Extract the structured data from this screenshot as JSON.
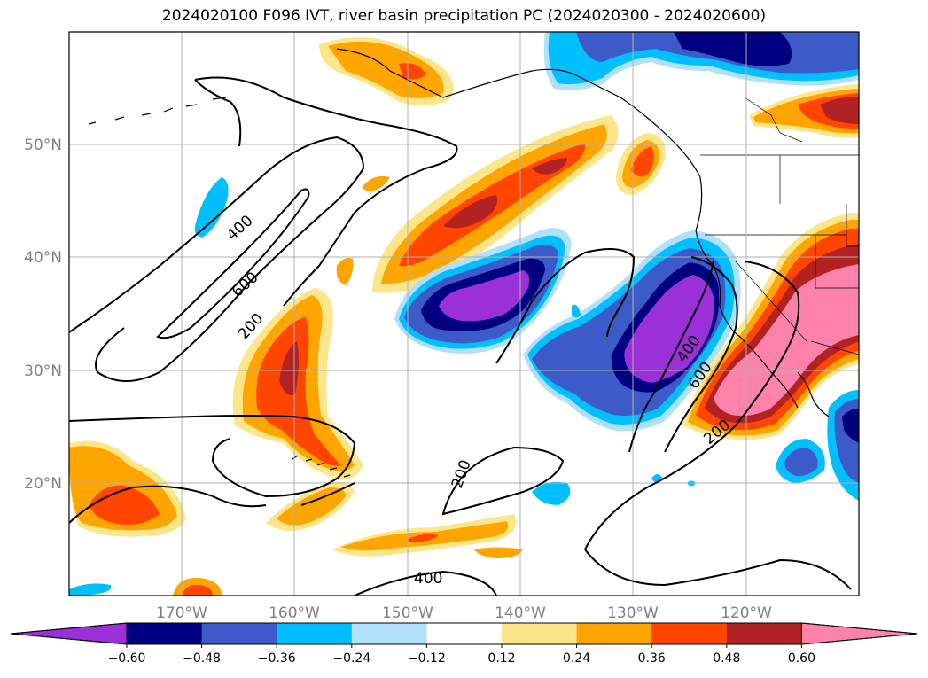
{
  "title": "2024020100 F096 IVT, river basin precipitation PC (2024020300 - 2024020600)",
  "lat_labels": [
    "50°N",
    "40°N",
    "30°N",
    "20°N"
  ],
  "lon_labels": [
    "170°W",
    "160°W",
    "150°W",
    "140°W",
    "130°W",
    "120°W"
  ],
  "contour_labels": [
    "400",
    "600",
    "200",
    "400",
    "600",
    "200",
    "200",
    "400"
  ],
  "colorbar": {
    "ticks": [
      "−0.60",
      "−0.48",
      "−0.36",
      "−0.24",
      "−0.12",
      "0.12",
      "0.24",
      "0.36",
      "0.48",
      "0.60"
    ],
    "colors": [
      "#9b30d9",
      "#000080",
      "#3c5ac8",
      "#00bfff",
      "#b0e0fa",
      "#ffffff",
      "#fde68a",
      "#ffa500",
      "#ff4500",
      "#b22222",
      "#ff82ab"
    ]
  },
  "colors": {
    "purple": "#9b30d9",
    "navy": "#000080",
    "blue": "#3c5ac8",
    "cyan": "#00bfff",
    "lightblue": "#b0e0fa",
    "lightyellow": "#fde68a",
    "orange": "#ffa500",
    "orangered": "#ff4500",
    "darkred": "#b22222",
    "pink": "#ff82ab"
  }
}
